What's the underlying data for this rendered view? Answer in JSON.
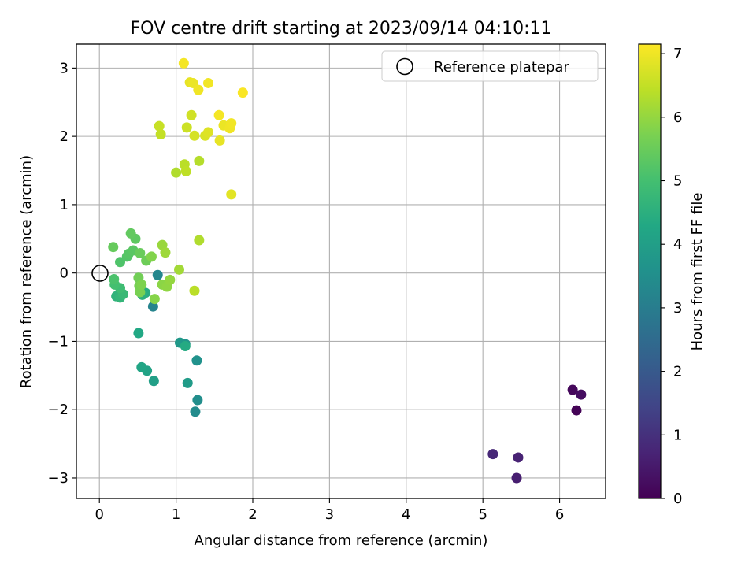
{
  "chart_data": {
    "type": "scatter",
    "title": "FOV centre drift starting at 2023/09/14 04:10:11",
    "xlabel": "Angular distance from reference (arcmin)",
    "ylabel": "Rotation from reference (arcmin)",
    "xlim": [
      -0.3,
      6.6
    ],
    "ylim": [
      -3.3,
      3.35
    ],
    "xticks": [
      0,
      1,
      2,
      3,
      4,
      5,
      6
    ],
    "yticks": [
      -3,
      -2,
      -1,
      0,
      1,
      2,
      3
    ],
    "xtick_labels": [
      "0",
      "1",
      "2",
      "3",
      "4",
      "5",
      "6"
    ],
    "ytick_labels": [
      "−3",
      "−2",
      "−1",
      "0",
      "1",
      "2",
      "3"
    ],
    "grid": true,
    "legend": {
      "position": "top-right",
      "entries": [
        "Reference platepar"
      ]
    },
    "reference_point": {
      "x": 0,
      "y": 0,
      "label": "Reference platepar"
    },
    "colorbar": {
      "label": "Hours from first FF file",
      "range": [
        0,
        7.15
      ],
      "ticks": [
        0,
        1,
        2,
        3,
        4,
        5,
        6,
        7
      ],
      "tick_labels": [
        "0",
        "1",
        "2",
        "3",
        "4",
        "5",
        "6",
        "7"
      ],
      "colormap": "viridis"
    },
    "points": [
      {
        "x": 6.22,
        "y": -2.01,
        "h": 0.05
      },
      {
        "x": 6.17,
        "y": -1.71,
        "h": 0.15
      },
      {
        "x": 6.28,
        "y": -1.78,
        "h": 0.25
      },
      {
        "x": 5.44,
        "y": -3.0,
        "h": 0.6
      },
      {
        "x": 5.46,
        "y": -2.7,
        "h": 0.7
      },
      {
        "x": 5.13,
        "y": -2.65,
        "h": 0.8
      },
      {
        "x": 0.7,
        "y": -0.49,
        "h": 3.2
      },
      {
        "x": 0.76,
        "y": -0.03,
        "h": 3.3
      },
      {
        "x": 1.25,
        "y": -2.03,
        "h": 3.4
      },
      {
        "x": 1.28,
        "y": -1.86,
        "h": 3.5
      },
      {
        "x": 1.27,
        "y": -1.28,
        "h": 3.6
      },
      {
        "x": 1.12,
        "y": -1.04,
        "h": 3.7
      },
      {
        "x": 1.05,
        "y": -1.02,
        "h": 3.8
      },
      {
        "x": 1.15,
        "y": -1.61,
        "h": 3.9
      },
      {
        "x": 0.71,
        "y": -1.58,
        "h": 4.0
      },
      {
        "x": 0.62,
        "y": -1.43,
        "h": 4.1
      },
      {
        "x": 0.55,
        "y": -1.38,
        "h": 4.2
      },
      {
        "x": 0.51,
        "y": -0.88,
        "h": 4.3
      },
      {
        "x": 1.12,
        "y": -1.07,
        "h": 4.35
      },
      {
        "x": 0.6,
        "y": -0.29,
        "h": 4.4
      },
      {
        "x": 0.56,
        "y": -0.32,
        "h": 4.5
      },
      {
        "x": 0.22,
        "y": -0.34,
        "h": 4.6
      },
      {
        "x": 0.27,
        "y": -0.36,
        "h": 4.7
      },
      {
        "x": 0.31,
        "y": -0.31,
        "h": 4.8
      },
      {
        "x": 0.27,
        "y": -0.22,
        "h": 4.9
      },
      {
        "x": 0.2,
        "y": -0.17,
        "h": 5.0
      },
      {
        "x": 0.19,
        "y": -0.09,
        "h": 5.1
      },
      {
        "x": 0.27,
        "y": 0.16,
        "h": 5.15
      },
      {
        "x": 0.36,
        "y": 0.24,
        "h": 5.2
      },
      {
        "x": 0.38,
        "y": 0.28,
        "h": 5.25
      },
      {
        "x": 0.44,
        "y": 0.33,
        "h": 5.3
      },
      {
        "x": 0.47,
        "y": 0.5,
        "h": 5.35
      },
      {
        "x": 0.41,
        "y": 0.58,
        "h": 5.4
      },
      {
        "x": 0.18,
        "y": 0.38,
        "h": 5.45
      },
      {
        "x": 0.53,
        "y": 0.29,
        "h": 5.5
      },
      {
        "x": 0.61,
        "y": 0.18,
        "h": 5.55
      },
      {
        "x": 0.51,
        "y": -0.07,
        "h": 5.6
      },
      {
        "x": 0.52,
        "y": -0.19,
        "h": 5.65
      },
      {
        "x": 0.53,
        "y": -0.28,
        "h": 5.7
      },
      {
        "x": 0.55,
        "y": -0.17,
        "h": 5.75
      },
      {
        "x": 0.68,
        "y": 0.24,
        "h": 5.8
      },
      {
        "x": 0.72,
        "y": -0.38,
        "h": 5.85
      },
      {
        "x": 0.82,
        "y": -0.17,
        "h": 5.9
      },
      {
        "x": 0.88,
        "y": -0.2,
        "h": 5.95
      },
      {
        "x": 0.92,
        "y": -0.1,
        "h": 6.0
      },
      {
        "x": 0.82,
        "y": 0.41,
        "h": 6.05
      },
      {
        "x": 0.86,
        "y": 0.3,
        "h": 6.1
      },
      {
        "x": 1.04,
        "y": 0.05,
        "h": 6.15
      },
      {
        "x": 1.3,
        "y": 0.48,
        "h": 6.3
      },
      {
        "x": 1.24,
        "y": -0.26,
        "h": 6.4
      },
      {
        "x": 1.0,
        "y": 1.47,
        "h": 6.3
      },
      {
        "x": 1.11,
        "y": 1.59,
        "h": 6.4
      },
      {
        "x": 1.13,
        "y": 1.49,
        "h": 6.45
      },
      {
        "x": 1.3,
        "y": 1.64,
        "h": 6.35
      },
      {
        "x": 0.8,
        "y": 2.03,
        "h": 6.5
      },
      {
        "x": 0.78,
        "y": 2.15,
        "h": 6.55
      },
      {
        "x": 1.14,
        "y": 2.13,
        "h": 6.6
      },
      {
        "x": 1.2,
        "y": 2.31,
        "h": 6.65
      },
      {
        "x": 1.24,
        "y": 2.01,
        "h": 6.7
      },
      {
        "x": 1.38,
        "y": 2.01,
        "h": 6.75
      },
      {
        "x": 1.42,
        "y": 2.06,
        "h": 6.8
      },
      {
        "x": 1.72,
        "y": 1.15,
        "h": 6.85
      },
      {
        "x": 1.57,
        "y": 1.94,
        "h": 6.9
      },
      {
        "x": 1.62,
        "y": 2.16,
        "h": 6.95
      },
      {
        "x": 1.7,
        "y": 2.12,
        "h": 7.0
      },
      {
        "x": 1.72,
        "y": 2.19,
        "h": 7.02
      },
      {
        "x": 1.56,
        "y": 2.31,
        "h": 7.05
      },
      {
        "x": 1.18,
        "y": 2.79,
        "h": 6.9
      },
      {
        "x": 1.22,
        "y": 2.78,
        "h": 6.95
      },
      {
        "x": 1.29,
        "y": 2.68,
        "h": 7.0
      },
      {
        "x": 1.42,
        "y": 2.78,
        "h": 7.02
      },
      {
        "x": 1.1,
        "y": 3.07,
        "h": 7.05
      },
      {
        "x": 1.87,
        "y": 2.64,
        "h": 7.1
      }
    ]
  }
}
